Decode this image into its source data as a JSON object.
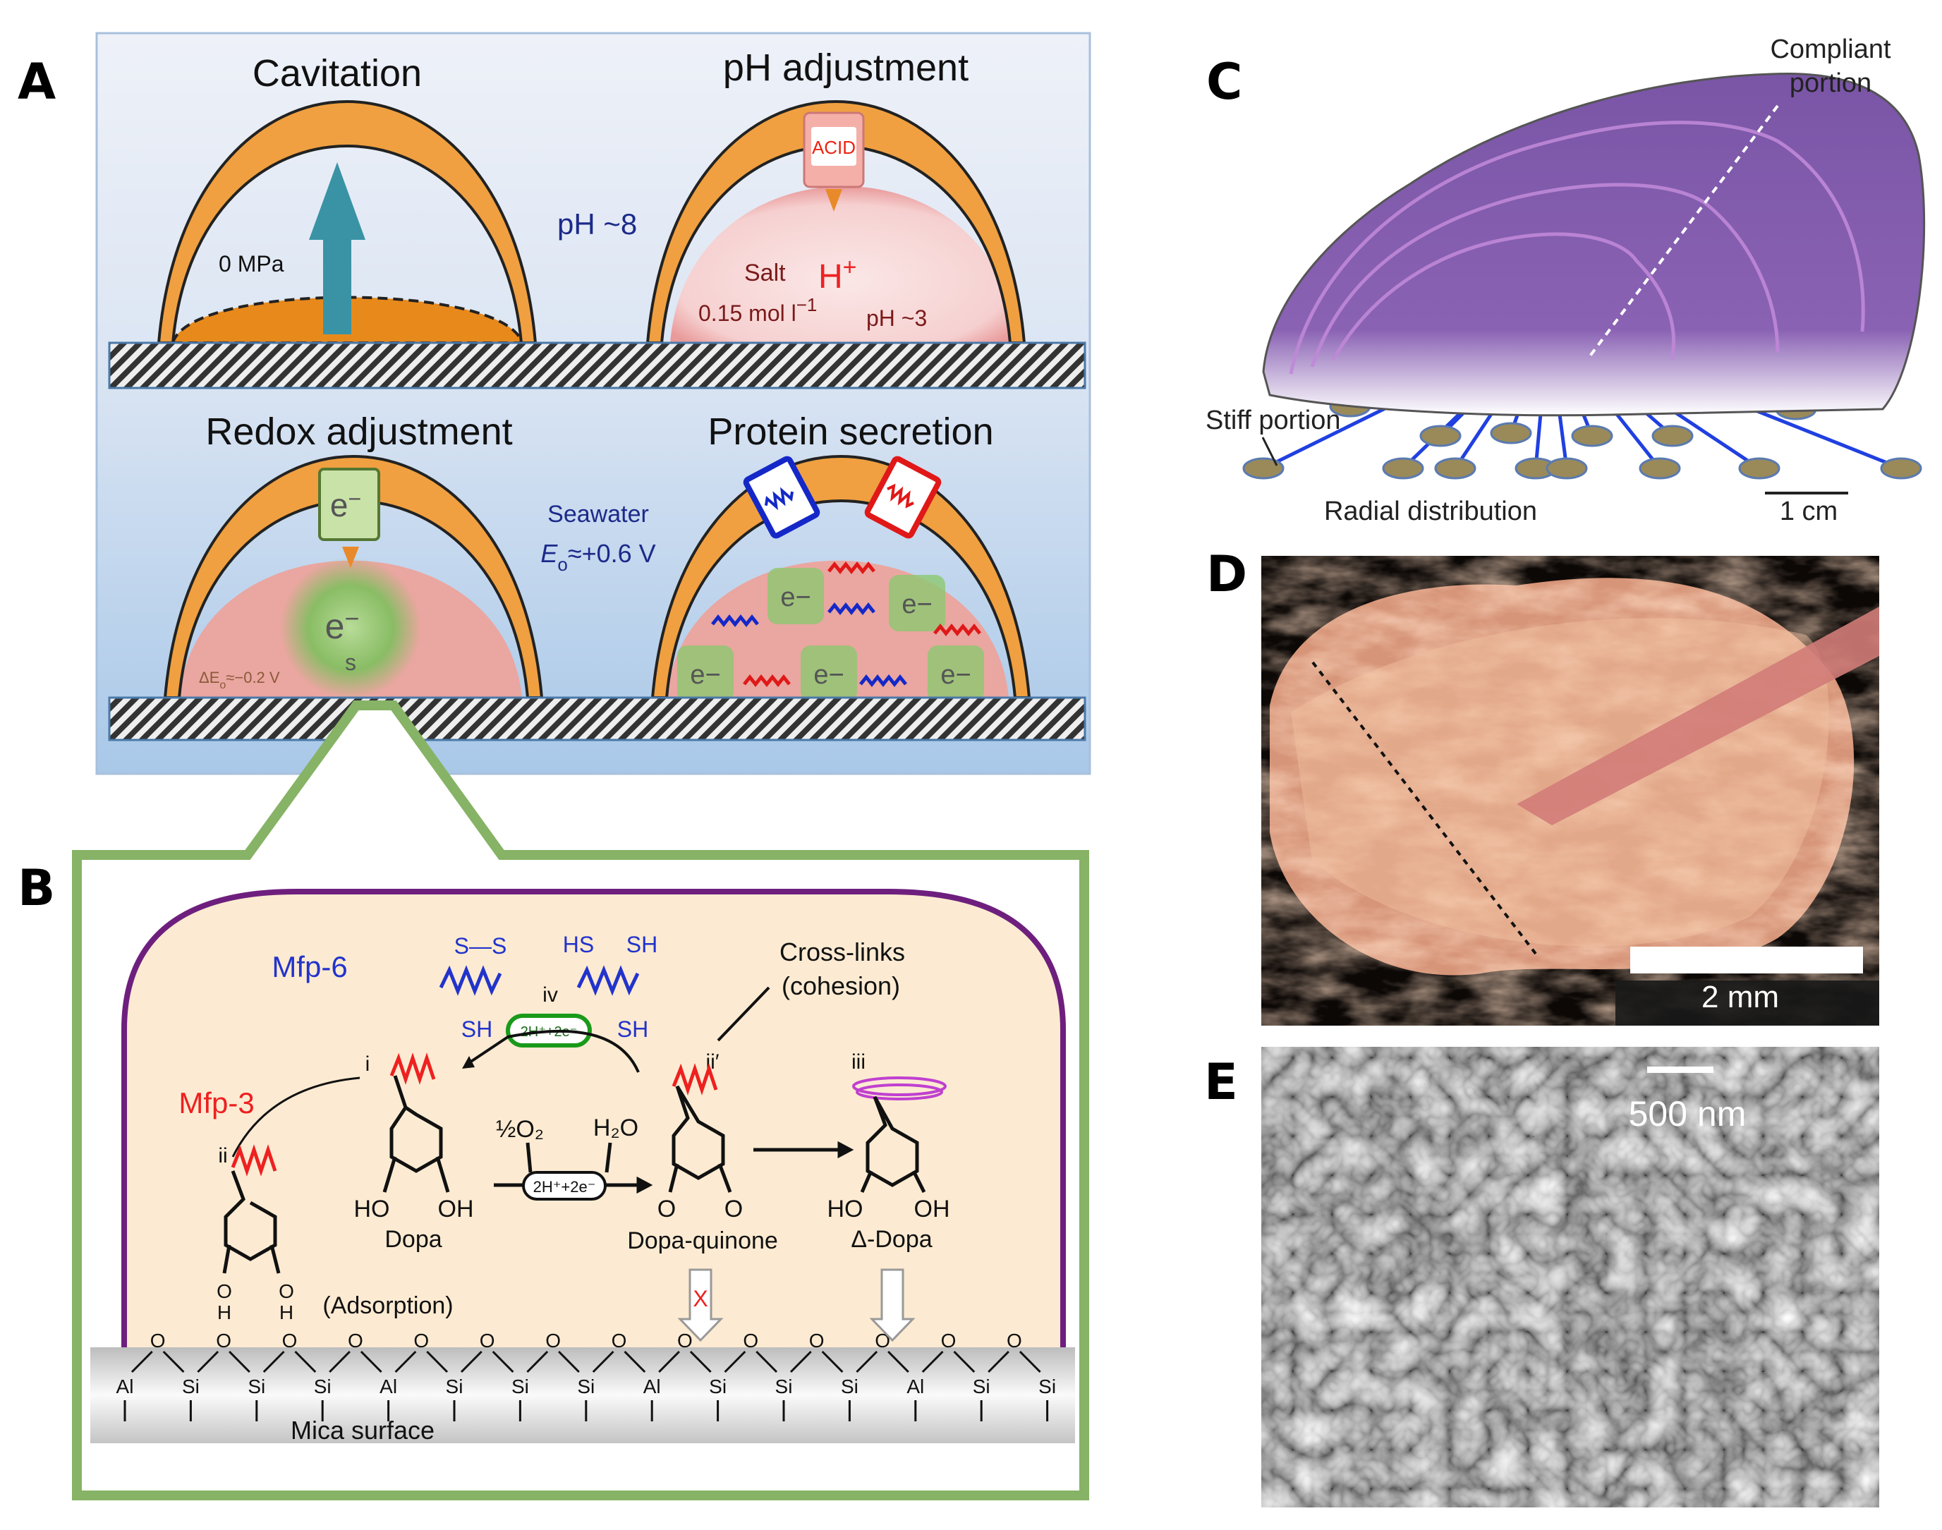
{
  "panel_labels": {
    "a": "A",
    "b": "B",
    "c": "C",
    "d": "D",
    "e": "E"
  },
  "panel_a": {
    "cavitation": {
      "title": "Cavitation",
      "pressure": "0 MPa"
    },
    "ph": {
      "title": "pH adjustment",
      "outside": "pH ~8",
      "acid": "ACID",
      "salt": "Salt",
      "proton": "H",
      "proton_sup": "+",
      "conc": "0.15 mol l",
      "conc_sup": "−1",
      "inside": "pH ~3"
    },
    "redox": {
      "title": "Redox adjustment",
      "electron": "e",
      "electron_sup": "−",
      "surface": "s",
      "delta": "ΔE",
      "delta_sub": "o",
      "delta_val": "≈−0.2 V"
    },
    "seawater": {
      "label": "Seawater",
      "e": "E",
      "e_sub": "o",
      "e_val": "≈+0.6 V"
    },
    "protein": {
      "title": "Protein secretion",
      "electron": "e",
      "electron_sup": "−"
    }
  },
  "panel_b": {
    "mfp6": "Mfp-6",
    "mfp3": "Mfp-3",
    "ss": "S—S",
    "hs": "HS",
    "sh": "SH",
    "iv": "iv",
    "pill": "2H⁺+2e⁻",
    "crosslinks": "Cross-links",
    "cohesion": "(cohesion)",
    "i": "i",
    "ii_prime": "ii′",
    "iii": "iii",
    "ii": "ii",
    "half_o2": "½O₂",
    "h2o": "H₂O",
    "redox_pill": "2H⁺+2e⁻",
    "ho": "HO",
    "oh": "OH",
    "o": "O",
    "h": "H",
    "dopa": "Dopa",
    "dopa_quinone": "Dopa-quinone",
    "delta_dopa": "Δ-Dopa",
    "adsorption": "(Adsorption)",
    "blocked_mark": "X",
    "mica_label": "Mica surface",
    "mica_atoms": [
      "Al",
      "Si",
      "Si",
      "Si",
      "Al",
      "Si",
      "Si",
      "Si",
      "Al",
      "Si",
      "Si",
      "Si",
      "Al",
      "Si",
      "Si"
    ],
    "mica_oxygen": "O"
  },
  "panel_c": {
    "compliant_1": "Compliant",
    "compliant_2": "portion",
    "stiff": "Stiff portion",
    "radial": "Radial distribution",
    "scale": "1 cm"
  },
  "panel_d": {
    "scale": "2 mm"
  },
  "panel_e": {
    "scale": "500 nm"
  },
  "colors": {
    "shell_orange": "#f0a040",
    "panel_a_bg": "#c9dcf0",
    "panel_b_border": "#86b365",
    "mfp6_blue": "#2233cc",
    "mfp3_red": "#ee2020",
    "mussel_purple": "#8a60b0",
    "byssus_blue": "#2040e0"
  }
}
